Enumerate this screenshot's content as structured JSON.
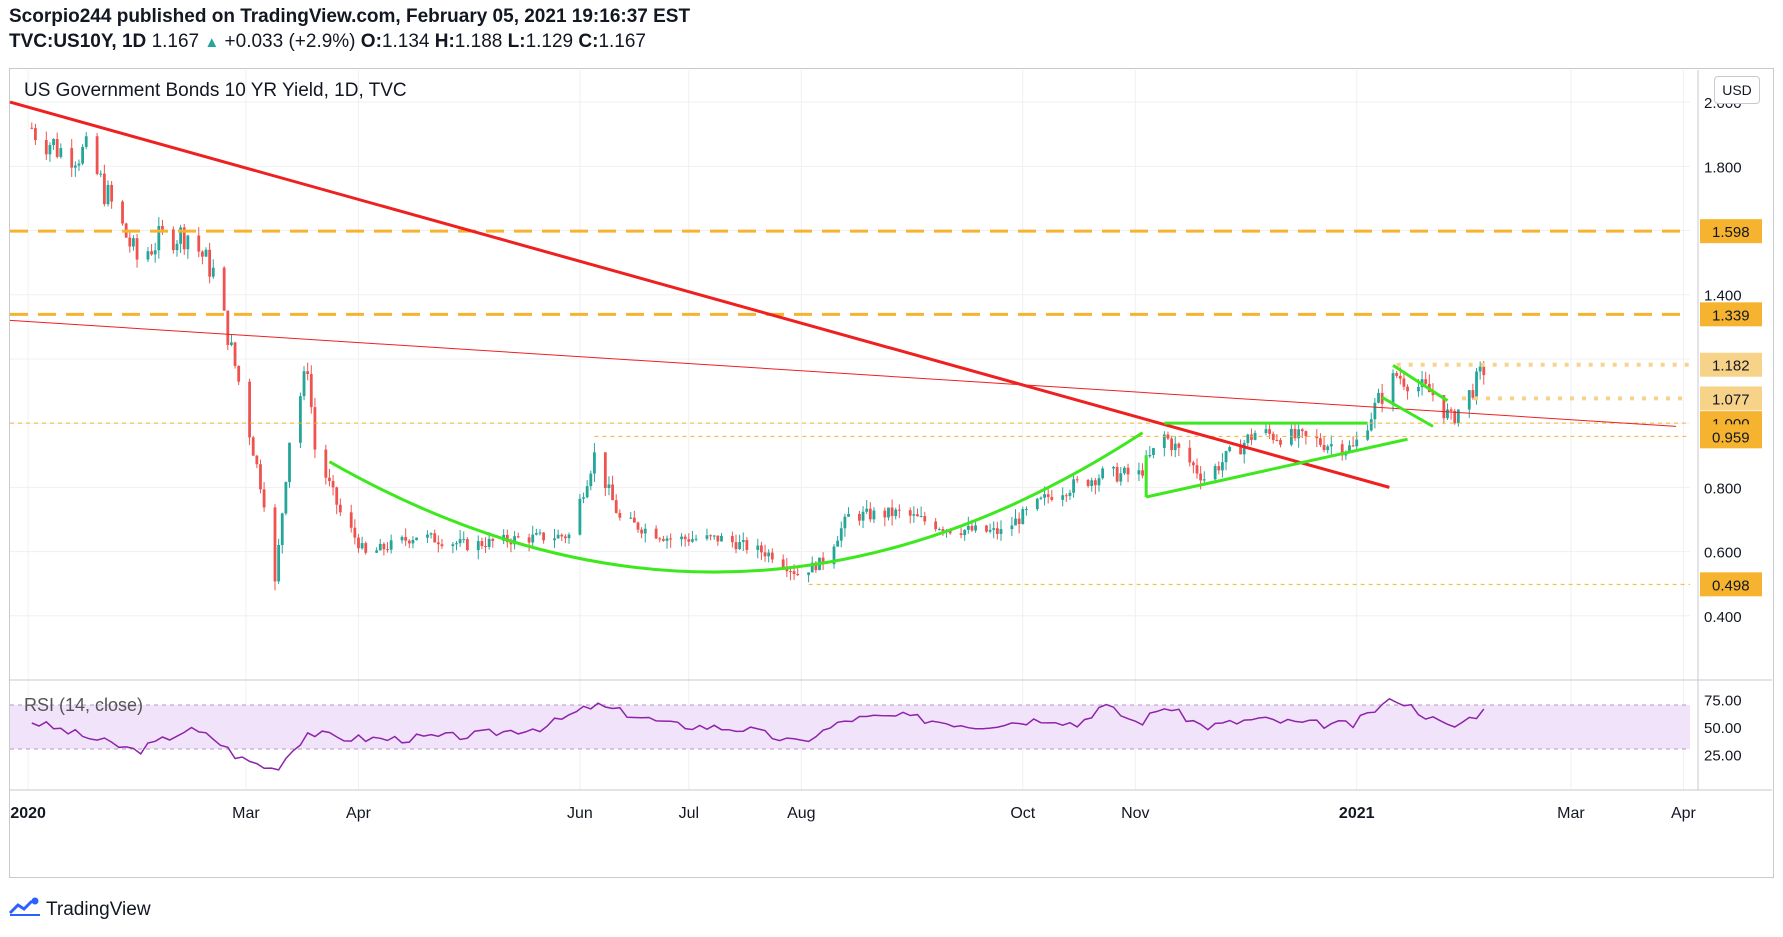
{
  "header": {
    "publisher_line": "Scorpio244 published on TradingView.com, February 05, 2021 19:16:37 EST",
    "symbol": "TVC:US10Y, 1D",
    "last": "1.167",
    "change": "+0.033 (+2.9%)",
    "o_label": "O:",
    "o_value": "1.134",
    "h_label": "H:",
    "h_value": "1.188",
    "l_label": "L:",
    "l_value": "1.129",
    "c_label": "C:",
    "c_value": "1.167"
  },
  "currency_button": "USD",
  "footer_brand": "TradingView",
  "colors": {
    "up": "#26a69a",
    "down": "#ef5350",
    "red_line": "#ee2020",
    "green_line": "#3ee81e",
    "orange": "#f5b32f",
    "rsi_line": "#8e24aa",
    "rsi_band": "#f1e3fa"
  },
  "chart_data": [
    {
      "type": "candlestick",
      "title": "US Government Bonds 10 YR Yield, 1D, TVC",
      "x_tick_labels": [
        "2020",
        "Mar",
        "Apr",
        "Jun",
        "Jul",
        "Aug",
        "Oct",
        "Nov",
        "2021",
        "Mar",
        "Apr"
      ],
      "y_tick_labels": [
        "2.000",
        "1.800",
        "1.400",
        "0.800",
        "0.600",
        "0.400"
      ],
      "ylim": [
        0.2,
        2.1
      ],
      "price_labels": [
        "1.598",
        "1.339",
        "1.182",
        "1.077",
        "1.000",
        "0.959",
        "0.498"
      ],
      "grid": true,
      "series": [
        {
          "close_path": [
            [
              "2020-01-02",
              1.92
            ],
            [
              "2020-01-10",
              1.85
            ],
            [
              "2020-01-17",
              1.84
            ],
            [
              "2020-01-24",
              1.68
            ],
            [
              "2020-01-31",
              1.51
            ],
            [
              "2020-02-07",
              1.58
            ],
            [
              "2020-02-14",
              1.59
            ],
            [
              "2020-02-21",
              1.47
            ],
            [
              "2020-02-28",
              1.13
            ],
            [
              "2020-03-06",
              0.76
            ],
            [
              "2020-03-09",
              0.5
            ],
            [
              "2020-03-13",
              0.95
            ],
            [
              "2020-03-18",
              1.18
            ],
            [
              "2020-03-20",
              0.92
            ],
            [
              "2020-03-27",
              0.72
            ],
            [
              "2020-04-03",
              0.59
            ],
            [
              "2020-04-17",
              0.65
            ],
            [
              "2020-05-01",
              0.62
            ],
            [
              "2020-05-15",
              0.64
            ],
            [
              "2020-05-29",
              0.65
            ],
            [
              "2020-06-05",
              0.9
            ],
            [
              "2020-06-12",
              0.7
            ],
            [
              "2020-06-26",
              0.64
            ],
            [
              "2020-07-10",
              0.64
            ],
            [
              "2020-07-24",
              0.59
            ],
            [
              "2020-07-31",
              0.53
            ],
            [
              "2020-08-07",
              0.57
            ],
            [
              "2020-08-14",
              0.71
            ],
            [
              "2020-08-28",
              0.72
            ],
            [
              "2020-09-11",
              0.67
            ],
            [
              "2020-09-25",
              0.66
            ],
            [
              "2020-10-09",
              0.78
            ],
            [
              "2020-10-23",
              0.84
            ],
            [
              "2020-11-02",
              0.84
            ],
            [
              "2020-11-09",
              0.96
            ],
            [
              "2020-11-20",
              0.83
            ],
            [
              "2020-12-04",
              0.97
            ],
            [
              "2020-12-18",
              0.95
            ],
            [
              "2020-12-31",
              0.92
            ],
            [
              "2021-01-07",
              1.07
            ],
            [
              "2021-01-12",
              1.15
            ],
            [
              "2021-01-22",
              1.09
            ],
            [
              "2021-01-27",
              1.01
            ],
            [
              "2021-02-01",
              1.09
            ],
            [
              "2021-02-05",
              1.167
            ]
          ]
        },
        {
          "name": "RSI",
          "label": "RSI (14, close)",
          "y_tick_labels": [
            "75.00",
            "50.00",
            "25.00"
          ],
          "band": [
            30,
            70
          ],
          "values": [
            [
              "2020-01-02",
              55
            ],
            [
              "2020-01-16",
              42
            ],
            [
              "2020-01-31",
              28
            ],
            [
              "2020-02-14",
              48
            ],
            [
              "2020-02-21",
              40
            ],
            [
              "2020-02-28",
              22
            ],
            [
              "2020-03-09",
              11
            ],
            [
              "2020-03-18",
              45
            ],
            [
              "2020-03-27",
              40
            ],
            [
              "2020-04-10",
              39
            ],
            [
              "2020-05-01",
              42
            ],
            [
              "2020-05-22",
              50
            ],
            [
              "2020-06-05",
              70
            ],
            [
              "2020-06-26",
              52
            ],
            [
              "2020-07-17",
              48
            ],
            [
              "2020-07-31",
              35
            ],
            [
              "2020-08-14",
              57
            ],
            [
              "2020-08-28",
              60
            ],
            [
              "2020-09-18",
              51
            ],
            [
              "2020-10-09",
              58
            ],
            [
              "2020-10-16",
              52
            ],
            [
              "2020-10-23",
              70
            ],
            [
              "2020-11-02",
              53
            ],
            [
              "2020-11-09",
              69
            ],
            [
              "2020-11-20",
              50
            ],
            [
              "2020-12-04",
              57
            ],
            [
              "2020-12-18",
              53
            ],
            [
              "2020-12-31",
              52
            ],
            [
              "2021-01-07",
              68
            ],
            [
              "2021-01-12",
              76
            ],
            [
              "2021-01-22",
              57
            ],
            [
              "2021-01-27",
              49
            ],
            [
              "2021-02-05",
              65
            ]
          ]
        }
      ]
    }
  ]
}
